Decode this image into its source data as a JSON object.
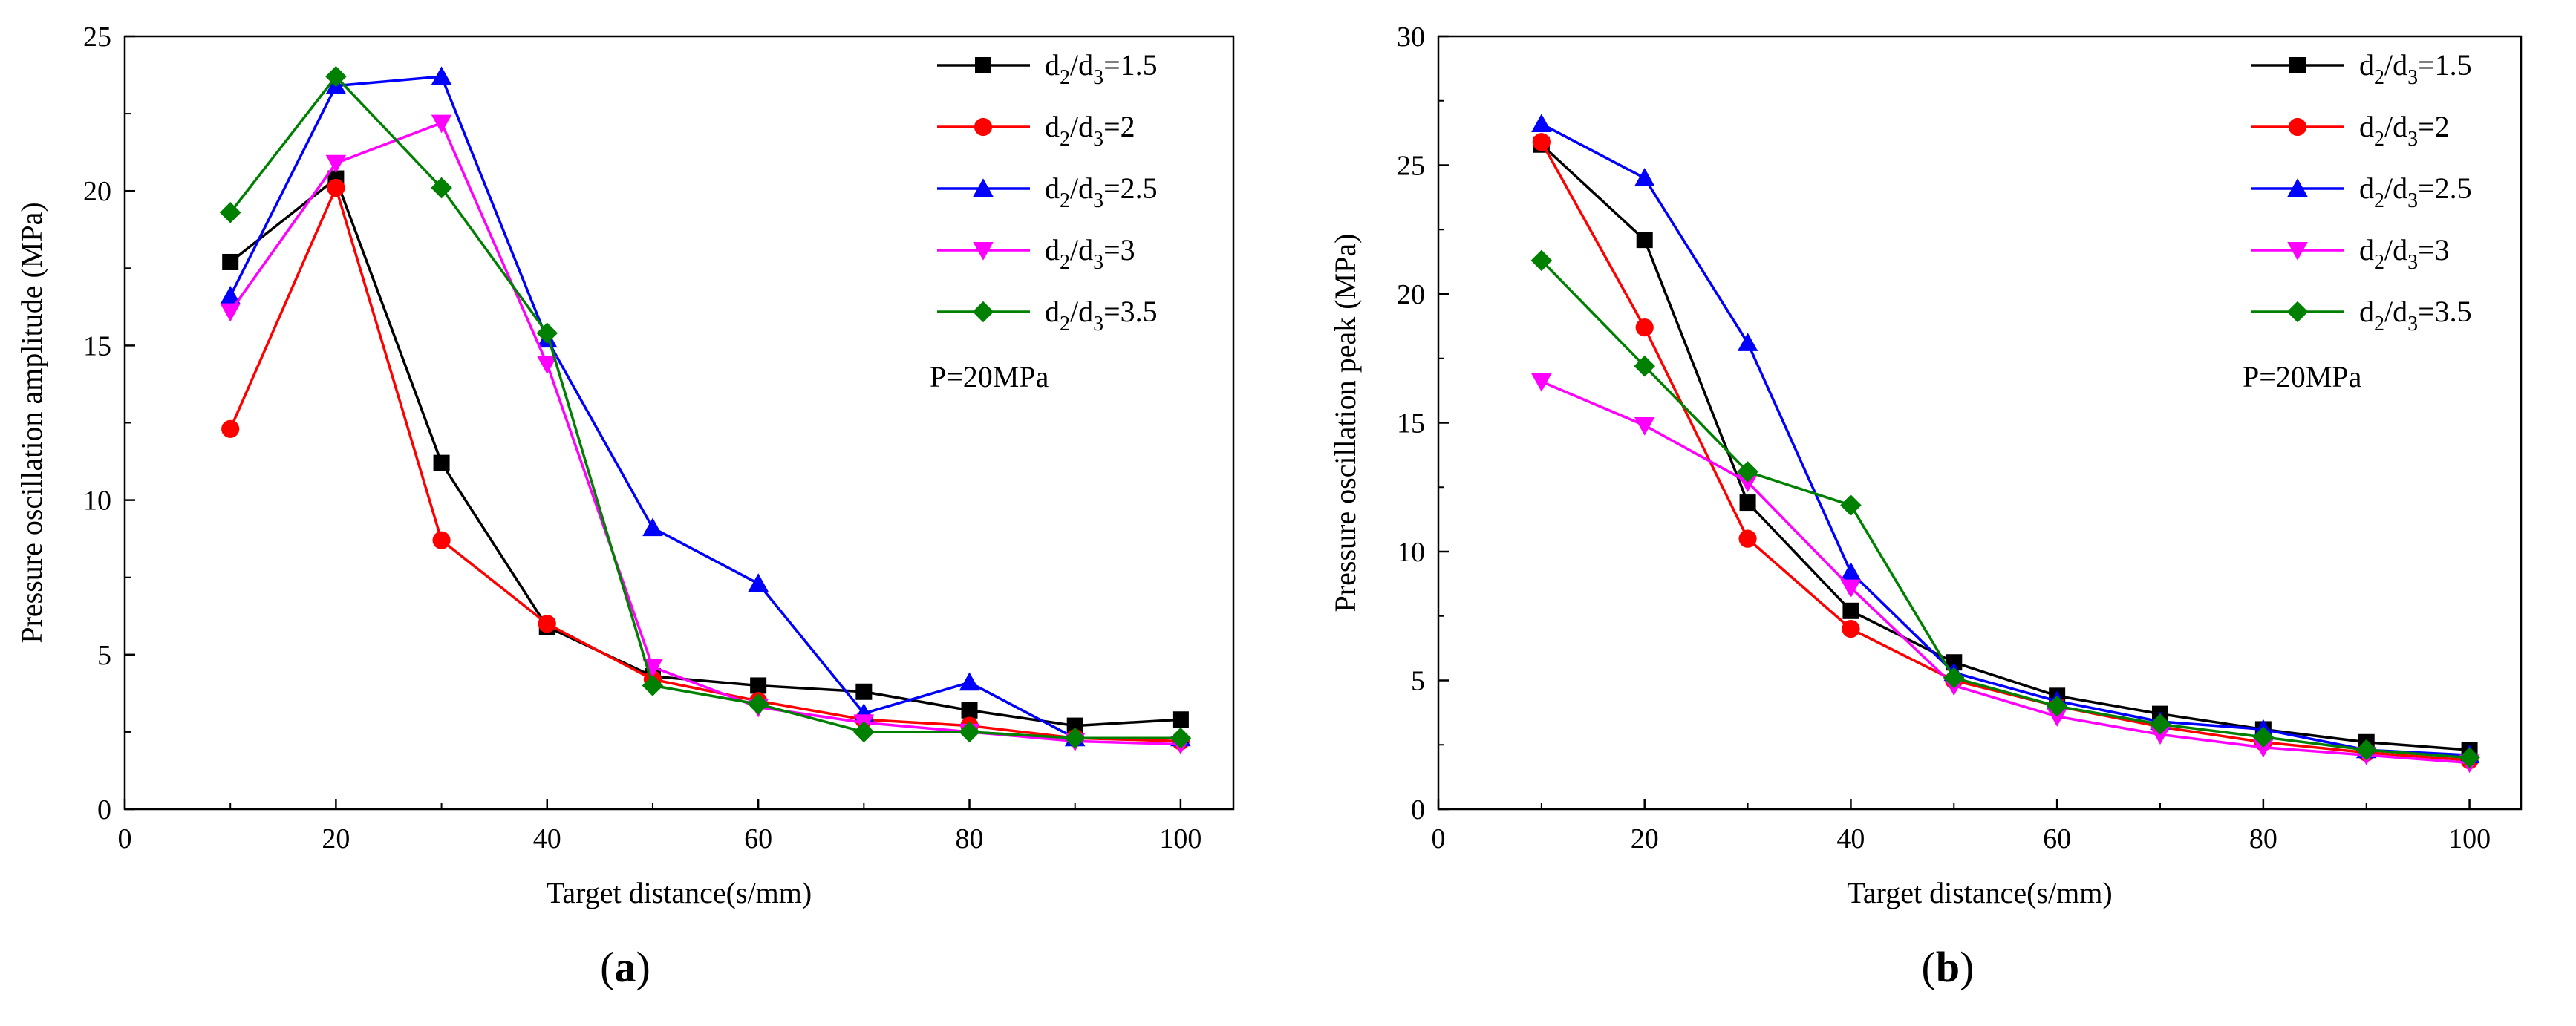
{
  "chart_data": [
    {
      "type": "line",
      "panel_label": "(a)",
      "panel_letter": "a",
      "xlabel": "Target distance(s/mm)",
      "ylabel": "Pressure  oscillation amplitude  (MPa)",
      "annotation": "P=20MPa",
      "xlim": [
        0,
        105
      ],
      "ylim": [
        0,
        25
      ],
      "xticks": [
        0,
        20,
        40,
        60,
        80,
        100
      ],
      "yticks": [
        0,
        5,
        10,
        15,
        20,
        25
      ],
      "legend_position": "top-right",
      "grid": false,
      "x": [
        10,
        20,
        30,
        40,
        50,
        60,
        70,
        80,
        90,
        100
      ],
      "series": [
        {
          "name": "d2/d3=1.5",
          "ratio": "1.5",
          "color": "#000000",
          "marker": "square",
          "values": [
            17.7,
            20.4,
            11.2,
            5.9,
            4.3,
            4.0,
            3.8,
            3.2,
            2.7,
            2.9
          ]
        },
        {
          "name": "d2/d3=2",
          "ratio": "2",
          "color": "#ff0000",
          "marker": "circle",
          "values": [
            12.3,
            20.1,
            8.7,
            6.0,
            4.2,
            3.5,
            2.9,
            2.7,
            2.3,
            2.2
          ]
        },
        {
          "name": "d2/d3=2.5",
          "ratio": "2.5",
          "color": "#0000ff",
          "marker": "triangle-up",
          "values": [
            16.6,
            23.4,
            23.7,
            15.2,
            9.1,
            7.3,
            3.1,
            4.1,
            2.3,
            2.3
          ]
        },
        {
          "name": "d2/d3=3",
          "ratio": "3",
          "color": "#ff00ff",
          "marker": "triangle-down",
          "values": [
            16.1,
            20.9,
            22.2,
            14.4,
            4.6,
            3.3,
            2.8,
            2.5,
            2.2,
            2.1
          ]
        },
        {
          "name": "d2/d3=3.5",
          "ratio": "3.5",
          "color": "#008000",
          "marker": "diamond",
          "values": [
            19.3,
            23.7,
            20.1,
            15.4,
            4.0,
            3.4,
            2.5,
            2.5,
            2.3,
            2.3
          ]
        }
      ]
    },
    {
      "type": "line",
      "panel_label": "(b)",
      "panel_letter": "b",
      "xlabel": "Target distance(s/mm)",
      "ylabel": "Pressure  oscillation peak  (MPa)",
      "annotation": "P=20MPa",
      "xlim": [
        0,
        105
      ],
      "ylim": [
        0,
        30
      ],
      "xticks": [
        0,
        20,
        40,
        60,
        80,
        100
      ],
      "yticks": [
        0,
        5,
        10,
        15,
        20,
        25,
        30
      ],
      "legend_position": "top-right",
      "grid": false,
      "x": [
        10,
        20,
        30,
        40,
        50,
        60,
        70,
        80,
        90,
        100
      ],
      "series": [
        {
          "name": "d2/d3=1.5",
          "ratio": "1.5",
          "color": "#000000",
          "marker": "square",
          "values": [
            25.8,
            22.1,
            11.9,
            7.7,
            5.7,
            4.4,
            3.7,
            3.1,
            2.6,
            2.3
          ]
        },
        {
          "name": "d2/d3=2",
          "ratio": "2",
          "color": "#ff0000",
          "marker": "circle",
          "values": [
            25.9,
            18.7,
            10.5,
            7.0,
            5.0,
            4.0,
            3.2,
            2.6,
            2.2,
            1.9
          ]
        },
        {
          "name": "d2/d3=2.5",
          "ratio": "2.5",
          "color": "#0000ff",
          "marker": "triangle-up",
          "values": [
            26.6,
            24.5,
            18.1,
            9.2,
            5.3,
            4.2,
            3.4,
            3.1,
            2.3,
            2.1
          ]
        },
        {
          "name": "d2/d3=3",
          "ratio": "3",
          "color": "#ff00ff",
          "marker": "triangle-down",
          "values": [
            16.6,
            14.9,
            12.7,
            8.6,
            4.8,
            3.6,
            2.9,
            2.4,
            2.1,
            1.8
          ]
        },
        {
          "name": "d2/d3=3.5",
          "ratio": "3.5",
          "color": "#008000",
          "marker": "diamond",
          "values": [
            21.3,
            17.2,
            13.1,
            11.8,
            5.1,
            4.0,
            3.3,
            2.8,
            2.3,
            2.0
          ]
        }
      ]
    }
  ]
}
